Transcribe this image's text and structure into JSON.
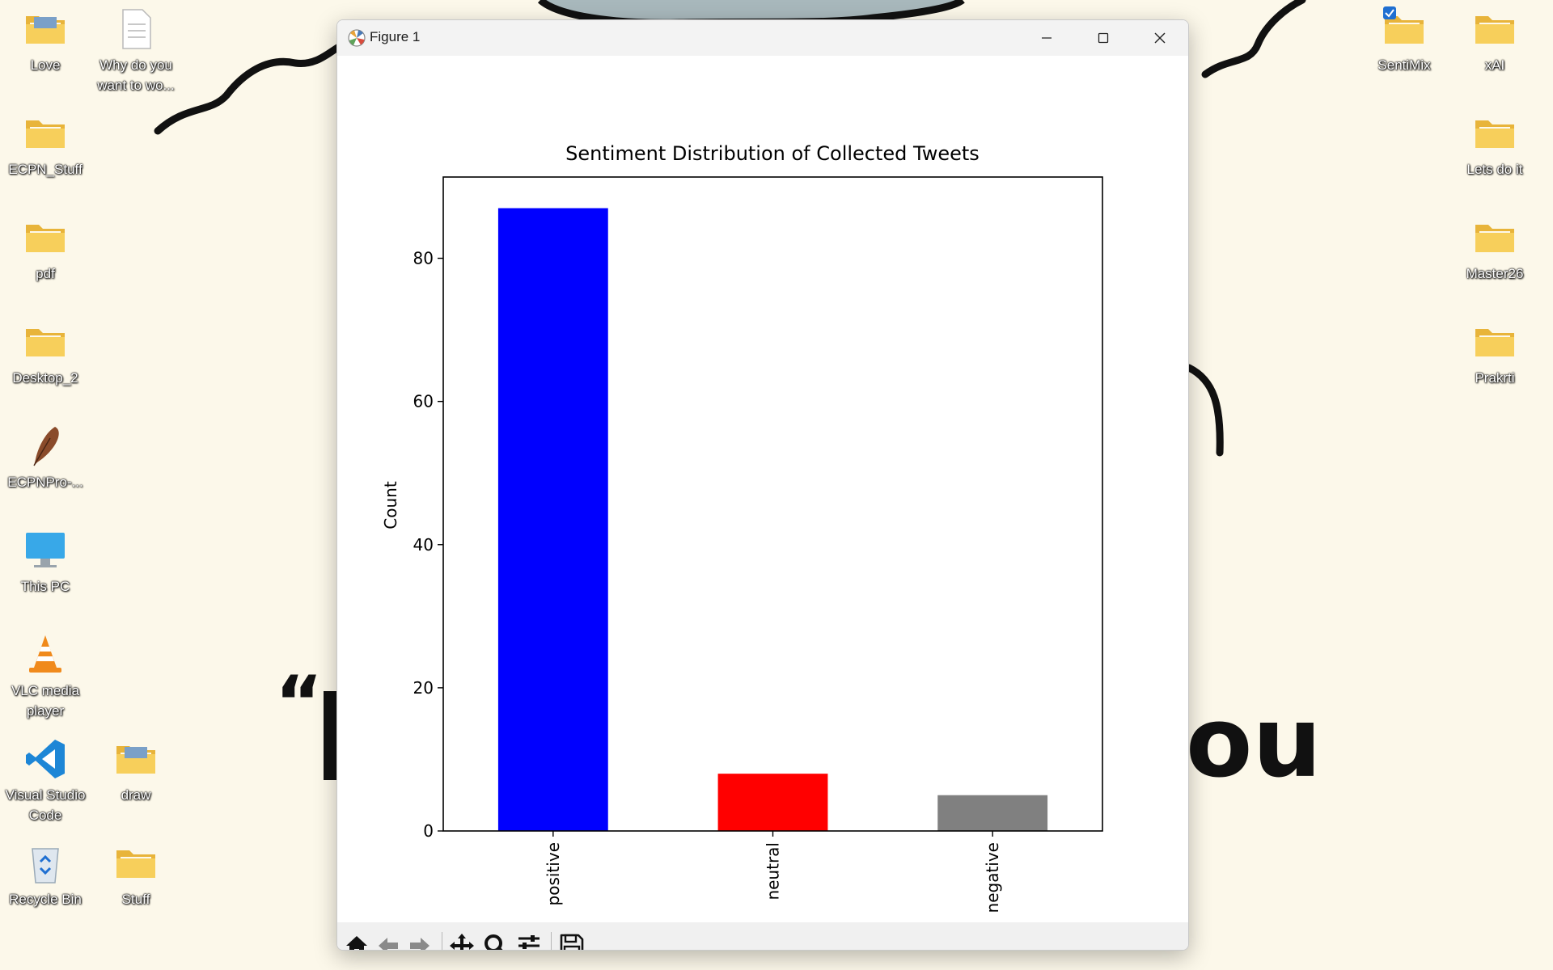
{
  "window": {
    "title": "Figure 1",
    "controls": [
      "minimize",
      "maximize",
      "close"
    ]
  },
  "desktop": {
    "left_icons": [
      {
        "label": "Love",
        "icon": "folder-image-icon"
      },
      {
        "label": "Why do you want to wo...",
        "icon": "document-icon"
      },
      {
        "label": "ECPN_Stuff",
        "icon": "folder-icon"
      },
      {
        "label": "pdf",
        "icon": "folder-icon"
      },
      {
        "label": "Desktop_2",
        "icon": "folder-icon"
      },
      {
        "label": "ECPNPro-...",
        "icon": "quill-icon"
      },
      {
        "label": "This PC",
        "icon": "monitor-icon"
      },
      {
        "label": "VLC media player",
        "icon": "vlc-cone-icon"
      },
      {
        "label": "Visual Studio Code",
        "icon": "vscode-icon"
      },
      {
        "label": "draw",
        "icon": "folder-image-icon"
      },
      {
        "label": "Recycle Bin",
        "icon": "recycle-bin-icon"
      },
      {
        "label": "Stuff",
        "icon": "folder-icon"
      }
    ],
    "right_icons": [
      {
        "label": "SentiMix",
        "icon": "folder-icon",
        "selected": true
      },
      {
        "label": "xAI",
        "icon": "folder-icon"
      },
      {
        "label": "Lets do it",
        "icon": "folder-icon"
      },
      {
        "label": "Master26",
        "icon": "folder-icon"
      },
      {
        "label": "Prakrti",
        "icon": "folder-icon"
      }
    ]
  },
  "toolbar": {
    "tools": [
      "home-icon",
      "back-arrow-icon",
      "forward-arrow-icon",
      "pan-move-icon",
      "zoom-magnifier-icon",
      "configure-subplots-icon",
      "save-floppy-icon"
    ]
  },
  "chart_data": {
    "type": "bar",
    "title": "Sentiment Distribution of Collected Tweets",
    "xlabel": "",
    "ylabel": "Count",
    "categories": [
      "positive",
      "neutral",
      "negative"
    ],
    "values": [
      87,
      8,
      5
    ],
    "colors": [
      "#0000ff",
      "#ff0000",
      "#808080"
    ],
    "ylim": [
      0,
      91.35
    ],
    "yticks": [
      0,
      20,
      40,
      60,
      80
    ],
    "grid": false,
    "legend": "none"
  }
}
